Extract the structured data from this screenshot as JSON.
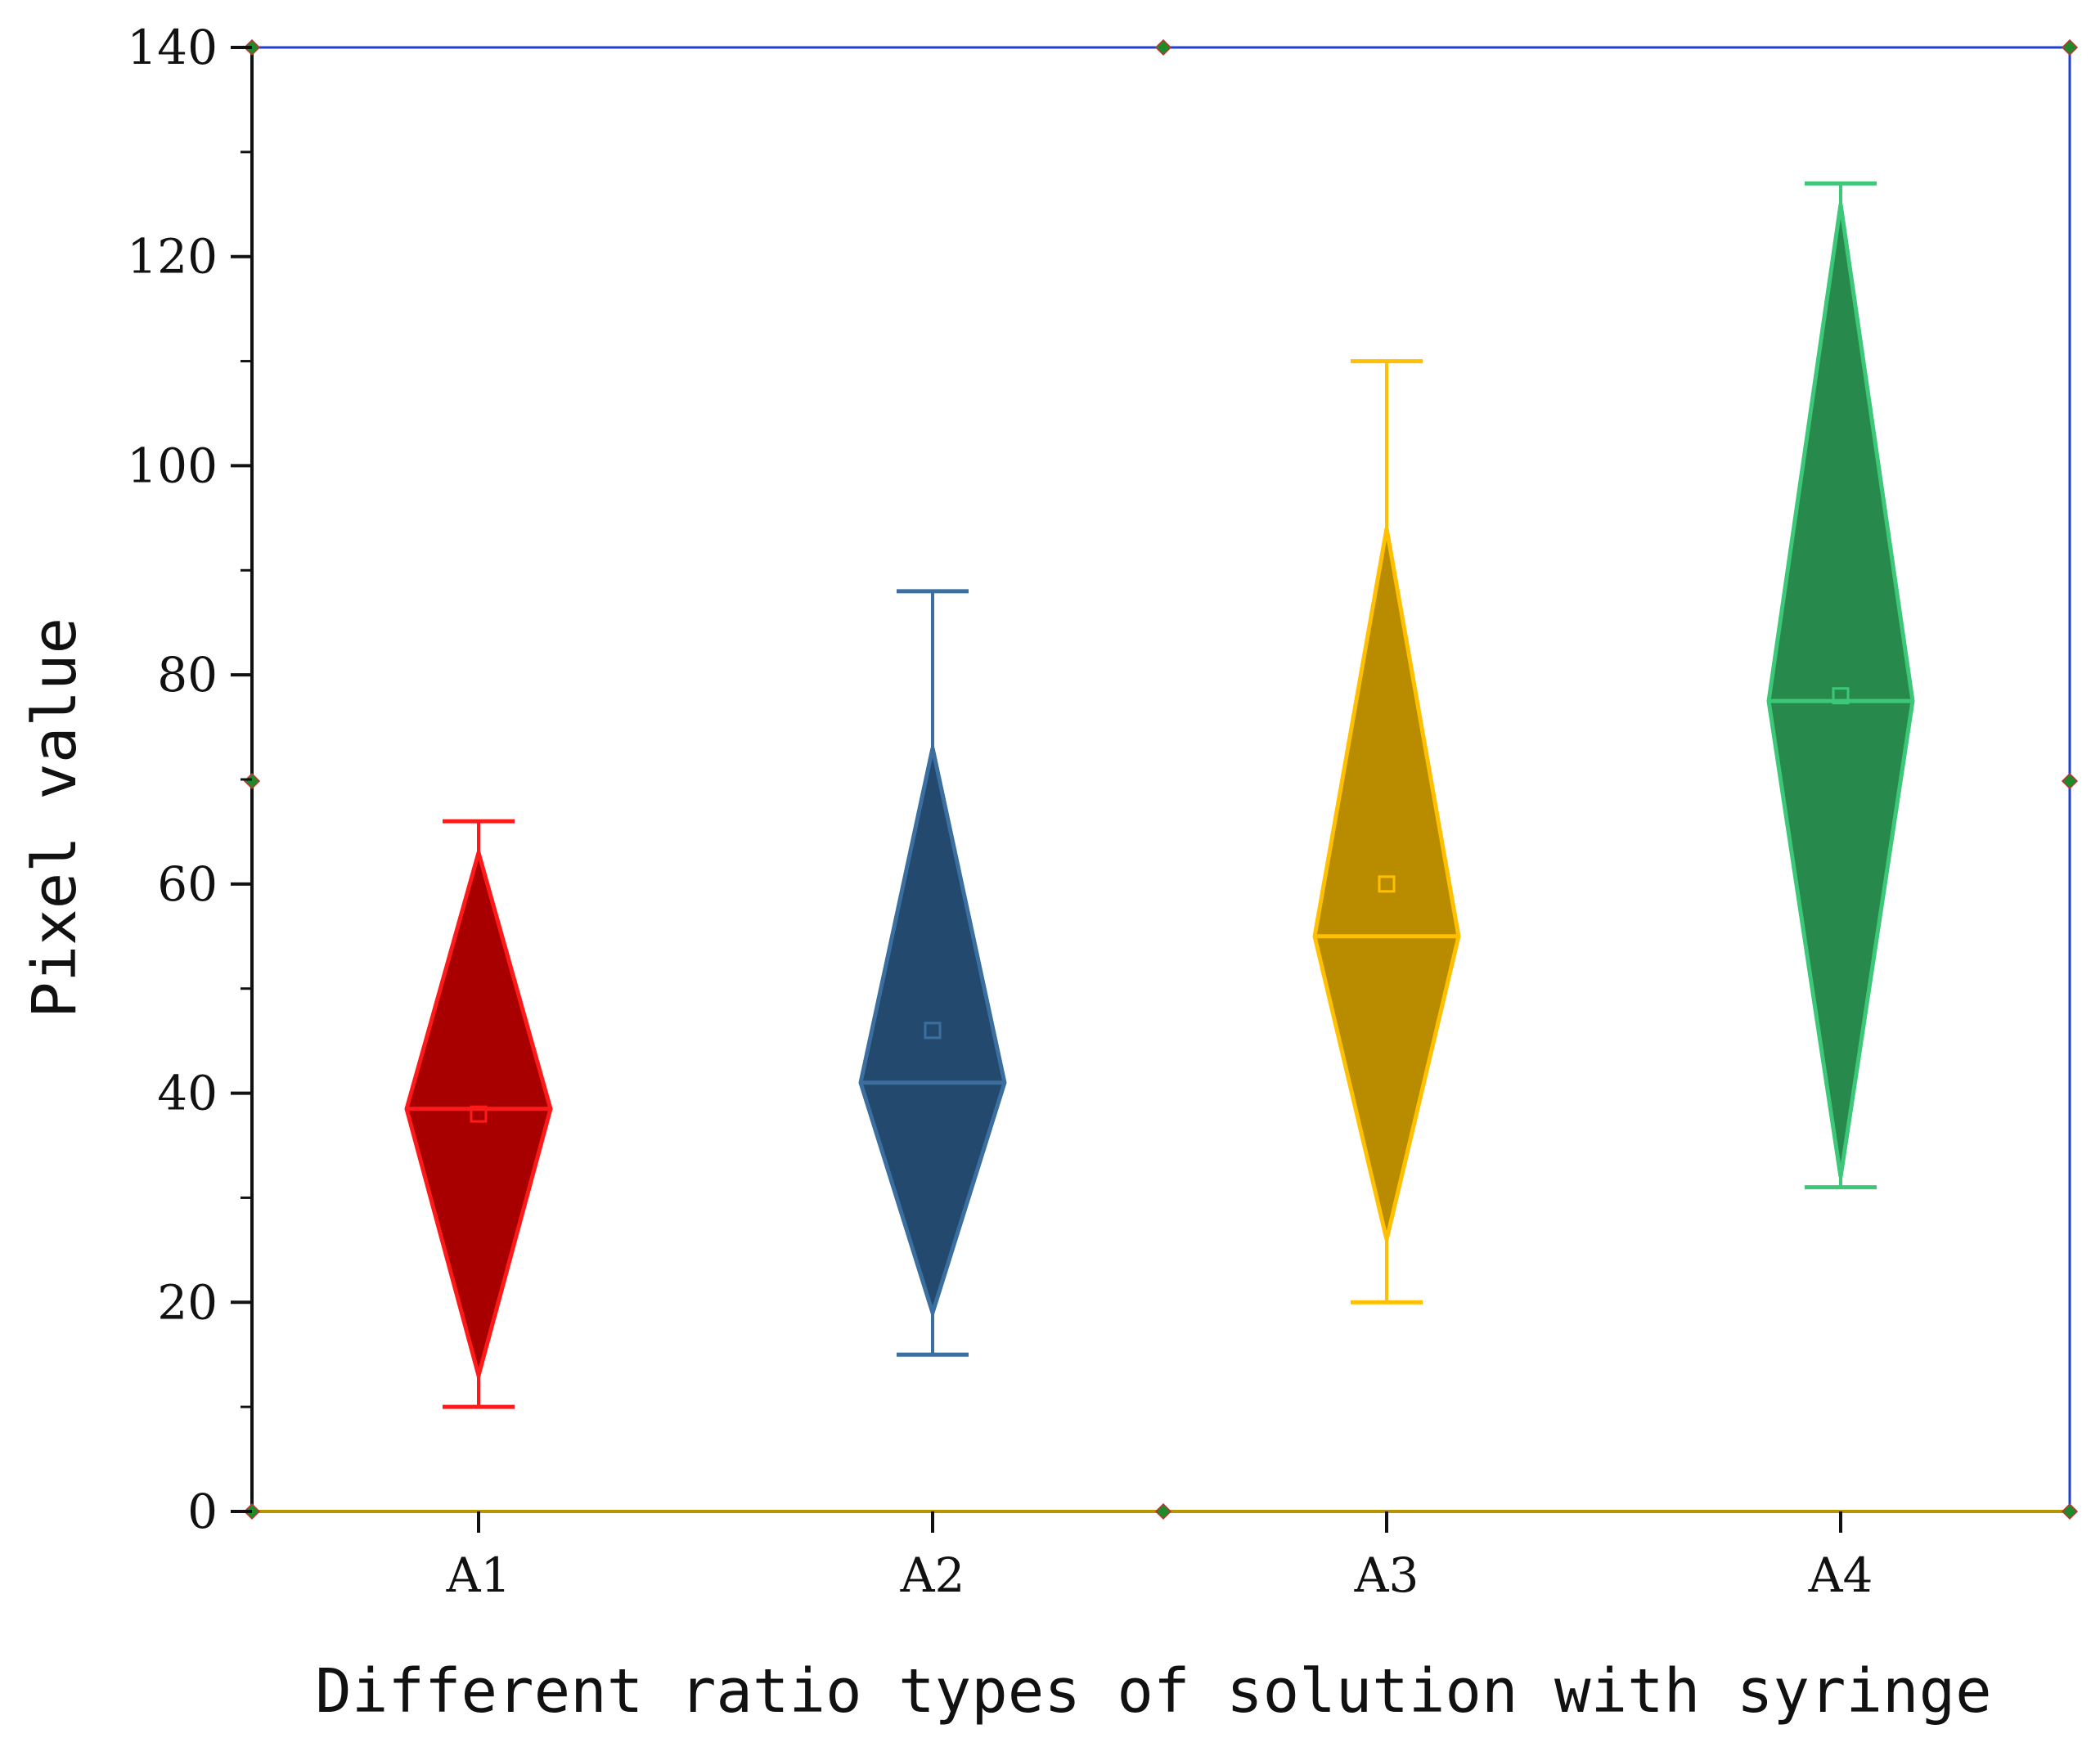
{
  "chart_data": {
    "type": "diamond-box",
    "title": "",
    "xlabel": "Different ratio types of solution with syringe",
    "ylabel": "Pixel value",
    "ylim": [
      0,
      140
    ],
    "yticks": [
      0,
      20,
      40,
      60,
      80,
      100,
      120,
      140
    ],
    "categories": [
      "A1",
      "A2",
      "A3",
      "A4"
    ],
    "grid": false,
    "series": [
      {
        "name": "A1",
        "whisker_low": 10,
        "whisker_high": 66,
        "diamond_low": 13,
        "diamond_high": 63,
        "median": 38.5,
        "mean": 38,
        "fill": "#a80000",
        "stroke": "#ff1a1a"
      },
      {
        "name": "A2",
        "whisker_low": 15,
        "whisker_high": 88,
        "diamond_low": 19,
        "diamond_high": 73,
        "median": 41,
        "mean": 46,
        "fill": "#234a6e",
        "stroke": "#3a6fa0"
      },
      {
        "name": "A3",
        "whisker_low": 20,
        "whisker_high": 110,
        "diamond_low": 26,
        "diamond_high": 94,
        "median": 55,
        "mean": 60,
        "fill": "#b98c00",
        "stroke": "#ffc000"
      },
      {
        "name": "A4",
        "whisker_low": 31,
        "whisker_high": 127,
        "diamond_low": 32,
        "diamond_high": 125,
        "median": 77.5,
        "mean": 78,
        "fill": "#278a4c",
        "stroke": "#3cc878"
      }
    ],
    "colors": {
      "axis_left": "#111111",
      "axis_bottom": "#b89400",
      "frame": "#1f3fd0"
    }
  }
}
